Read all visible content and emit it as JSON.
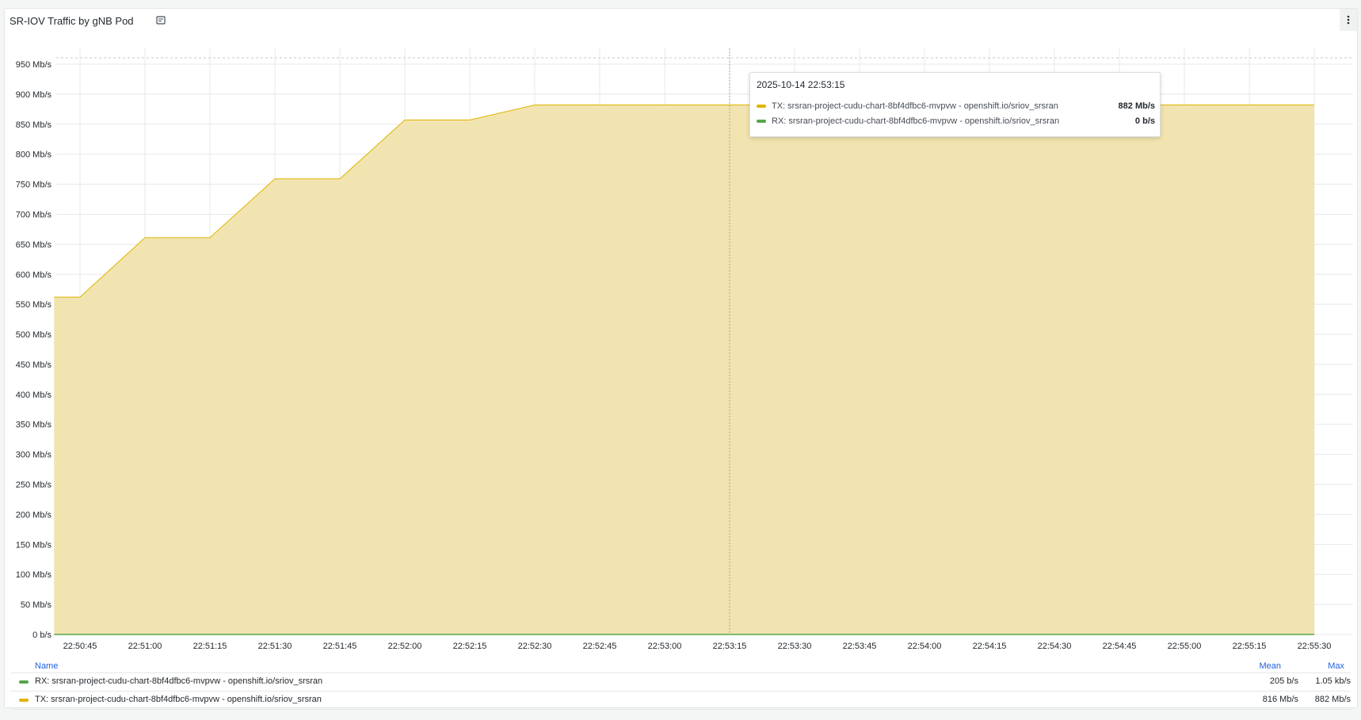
{
  "panel": {
    "title": "SR-IOV Traffic by gNB Pod",
    "info_icon": "document-icon",
    "menu_icon": "kebab-menu-icon"
  },
  "tooltip": {
    "time": "2025-10-14 22:53:15",
    "rows": [
      {
        "label": "TX: srsran-project-cudu-chart-8bf4dfbc6-mvpvw - openshift.io/sriov_srsran",
        "value": "882 Mb/s",
        "color": "#e0b400"
      },
      {
        "label": "RX: srsran-project-cudu-chart-8bf4dfbc6-mvpvw - openshift.io/sriov_srsran",
        "value": "0 b/s",
        "color": "#56a64b"
      }
    ]
  },
  "legend": {
    "headers": {
      "name": "Name",
      "mean": "Mean",
      "max": "Max"
    },
    "rows": [
      {
        "name": "RX: srsran-project-cudu-chart-8bf4dfbc6-mvpvw - openshift.io/sriov_srsran",
        "mean": "205 b/s",
        "max": "1.05 kb/s",
        "color": "#56a64b"
      },
      {
        "name": "TX: srsran-project-cudu-chart-8bf4dfbc6-mvpvw - openshift.io/sriov_srsran",
        "mean": "816 Mb/s",
        "max": "882 Mb/s",
        "color": "#e0b400"
      }
    ]
  },
  "chart_data": {
    "type": "area",
    "title": "SR-IOV Traffic by gNB Pod",
    "ylim": [
      0,
      950
    ],
    "y_unit": "Mb/s",
    "yticks": [
      "0 b/s",
      "50 Mb/s",
      "100 Mb/s",
      "150 Mb/s",
      "200 Mb/s",
      "250 Mb/s",
      "300 Mb/s",
      "350 Mb/s",
      "400 Mb/s",
      "450 Mb/s",
      "500 Mb/s",
      "550 Mb/s",
      "600 Mb/s",
      "650 Mb/s",
      "700 Mb/s",
      "750 Mb/s",
      "800 Mb/s",
      "850 Mb/s",
      "900 Mb/s",
      "950 Mb/s"
    ],
    "ytick_values": [
      0,
      50,
      100,
      150,
      200,
      250,
      300,
      350,
      400,
      450,
      500,
      550,
      600,
      650,
      700,
      750,
      800,
      850,
      900,
      950
    ],
    "xticks": [
      "22:50:45",
      "22:51:00",
      "22:51:15",
      "22:51:30",
      "22:51:45",
      "22:52:00",
      "22:52:15",
      "22:52:30",
      "22:52:45",
      "22:53:00",
      "22:53:15",
      "22:53:30",
      "22:53:45",
      "22:54:00",
      "22:54:15",
      "22:54:30",
      "22:54:45",
      "22:55:00",
      "22:55:15",
      "22:55:30"
    ],
    "cursor_x": "22:53:15",
    "grid": true,
    "series": [
      {
        "name": "TX: srsran-project-cudu-chart-8bf4dfbc6-mvpvw - openshift.io/sriov_srsran",
        "color": "#e0b400",
        "fill": "#f2e4b0",
        "points": [
          [
            "22:50:39",
            562
          ],
          [
            "22:50:45",
            562
          ],
          [
            "22:51:00",
            661
          ],
          [
            "22:51:15",
            661
          ],
          [
            "22:51:30",
            759
          ],
          [
            "22:51:45",
            759
          ],
          [
            "22:52:00",
            857
          ],
          [
            "22:52:15",
            857
          ],
          [
            "22:52:30",
            882
          ],
          [
            "22:55:30",
            882
          ]
        ]
      },
      {
        "name": "RX: srsran-project-cudu-chart-8bf4dfbc6-mvpvw - openshift.io/sriov_srsran",
        "color": "#56a64b",
        "points": [
          [
            "22:50:39",
            0
          ],
          [
            "22:55:30",
            0
          ]
        ]
      }
    ]
  }
}
